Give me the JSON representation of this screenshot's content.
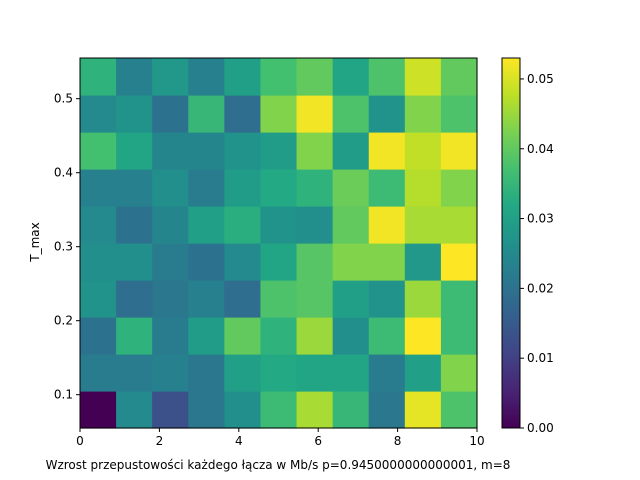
{
  "chart_data": {
    "type": "heatmap",
    "xlabel": "Wzrost przepustowości każdego łącza w Mb/s p=0.9450000000000001, m=8",
    "ylabel": "T_max",
    "xlim": [
      0,
      10
    ],
    "ylim": [
      0.055,
      0.555
    ],
    "x_ticks": [
      "0",
      "2",
      "4",
      "6",
      "8",
      "10"
    ],
    "y_ticks": [
      "0.1",
      "0.2",
      "0.3",
      "0.4",
      "0.5"
    ],
    "colorbar_ticks": [
      "0.00",
      "0.01",
      "0.02",
      "0.03",
      "0.04",
      "0.05"
    ],
    "vmin": 0.0,
    "vmax": 0.053,
    "colormap": "viridis",
    "values": [
      [
        0.0,
        0.025,
        0.013,
        0.021,
        0.026,
        0.036,
        0.046,
        0.035,
        0.021,
        0.051,
        0.038
      ],
      [
        0.022,
        0.022,
        0.023,
        0.021,
        0.03,
        0.032,
        0.031,
        0.031,
        0.022,
        0.03,
        0.043
      ],
      [
        0.02,
        0.034,
        0.022,
        0.029,
        0.04,
        0.034,
        0.045,
        0.026,
        0.036,
        0.053,
        0.036
      ],
      [
        0.027,
        0.019,
        0.021,
        0.023,
        0.019,
        0.038,
        0.039,
        0.03,
        0.027,
        0.045,
        0.036
      ],
      [
        0.026,
        0.026,
        0.022,
        0.02,
        0.025,
        0.031,
        0.039,
        0.043,
        0.043,
        0.028,
        0.053
      ],
      [
        0.025,
        0.02,
        0.024,
        0.03,
        0.033,
        0.027,
        0.026,
        0.04,
        0.052,
        0.046,
        0.046
      ],
      [
        0.023,
        0.023,
        0.026,
        0.022,
        0.029,
        0.032,
        0.034,
        0.041,
        0.036,
        0.047,
        0.043
      ],
      [
        0.037,
        0.031,
        0.024,
        0.024,
        0.027,
        0.029,
        0.043,
        0.029,
        0.052,
        0.048,
        0.052
      ],
      [
        0.025,
        0.027,
        0.02,
        0.035,
        0.019,
        0.043,
        0.052,
        0.038,
        0.027,
        0.043,
        0.038
      ],
      [
        0.034,
        0.023,
        0.028,
        0.023,
        0.03,
        0.037,
        0.04,
        0.031,
        0.038,
        0.049,
        0.04
      ]
    ]
  }
}
